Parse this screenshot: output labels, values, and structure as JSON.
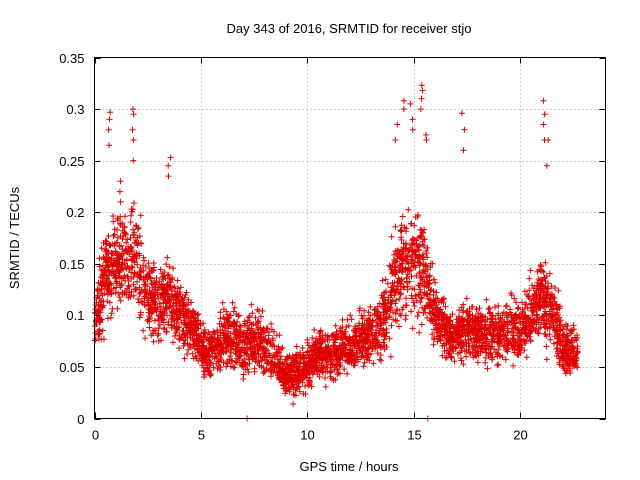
{
  "chart_data": {
    "type": "scatter",
    "title": "Day 343 of 2016, SRMTID for receiver stjo",
    "xlabel": "GPS time / hours",
    "ylabel": "SRMTID / TECUs",
    "xlim": [
      0,
      24
    ],
    "ylim": [
      0,
      0.35
    ],
    "x_ticks": [
      0,
      5,
      10,
      15,
      20
    ],
    "x_tick_labels": [
      "0",
      "5",
      "10",
      "15",
      "20"
    ],
    "y_ticks": [
      0,
      0.05,
      0.1,
      0.15,
      0.2,
      0.25,
      0.3,
      0.35
    ],
    "y_tick_labels": [
      "0",
      "0.05",
      "0.1",
      "0.15",
      "0.2",
      "0.25",
      "0.3",
      "0.35"
    ],
    "grid": true,
    "marker": "plus",
    "marker_color": "#e00000",
    "x_data_range": [
      0,
      22.7
    ],
    "envelope": {
      "hours": [
        0,
        0.5,
        1,
        1.5,
        2,
        2.5,
        3,
        3.5,
        4,
        4.5,
        5,
        5.5,
        6,
        6.5,
        7,
        7.5,
        8,
        8.5,
        9,
        9.5,
        10,
        10.5,
        11,
        11.5,
        12,
        12.5,
        13,
        13.5,
        14,
        14.5,
        15,
        15.5,
        16,
        16.5,
        17,
        17.5,
        18,
        18.5,
        19,
        19.5,
        20,
        20.5,
        21,
        21.5,
        22,
        22.5
      ],
      "center": [
        0.09,
        0.14,
        0.15,
        0.16,
        0.15,
        0.12,
        0.11,
        0.12,
        0.1,
        0.09,
        0.07,
        0.065,
        0.075,
        0.08,
        0.07,
        0.075,
        0.07,
        0.06,
        0.04,
        0.045,
        0.05,
        0.065,
        0.06,
        0.065,
        0.07,
        0.075,
        0.08,
        0.09,
        0.13,
        0.15,
        0.16,
        0.14,
        0.1,
        0.085,
        0.08,
        0.09,
        0.085,
        0.08,
        0.08,
        0.085,
        0.09,
        0.1,
        0.12,
        0.1,
        0.07,
        0.065
      ],
      "spread": [
        0.04,
        0.06,
        0.06,
        0.06,
        0.06,
        0.05,
        0.05,
        0.05,
        0.04,
        0.035,
        0.03,
        0.03,
        0.035,
        0.04,
        0.035,
        0.04,
        0.035,
        0.03,
        0.025,
        0.025,
        0.03,
        0.03,
        0.03,
        0.03,
        0.03,
        0.035,
        0.035,
        0.04,
        0.06,
        0.07,
        0.07,
        0.06,
        0.04,
        0.035,
        0.035,
        0.04,
        0.035,
        0.035,
        0.035,
        0.035,
        0.04,
        0.04,
        0.05,
        0.045,
        0.035,
        0.03
      ]
    },
    "spikes": [
      {
        "x": 0.7,
        "values": [
          0.265,
          0.28,
          0.29,
          0.297
        ]
      },
      {
        "x": 1.2,
        "values": [
          0.21,
          0.22,
          0.23
        ]
      },
      {
        "x": 1.8,
        "values": [
          0.25,
          0.27,
          0.28,
          0.295,
          0.3
        ]
      },
      {
        "x": 3.5,
        "values": [
          0.235,
          0.245,
          0.253
        ]
      },
      {
        "x": 7.1,
        "values": [
          0.0
        ]
      },
      {
        "x": 14.2,
        "values": [
          0.27,
          0.285
        ]
      },
      {
        "x": 14.6,
        "values": [
          0.3,
          0.308
        ]
      },
      {
        "x": 14.9,
        "values": [
          0.28,
          0.29,
          0.305
        ]
      },
      {
        "x": 15.4,
        "values": [
          0.3,
          0.31,
          0.318,
          0.323
        ]
      },
      {
        "x": 15.6,
        "values": [
          0.0,
          0.27,
          0.275
        ]
      },
      {
        "x": 17.3,
        "values": [
          0.26,
          0.28,
          0.296
        ]
      },
      {
        "x": 21.1,
        "values": [
          0.27,
          0.285,
          0.295,
          0.308
        ]
      },
      {
        "x": 21.3,
        "values": [
          0.245,
          0.27
        ]
      }
    ],
    "points_per_half_hour": 85
  }
}
